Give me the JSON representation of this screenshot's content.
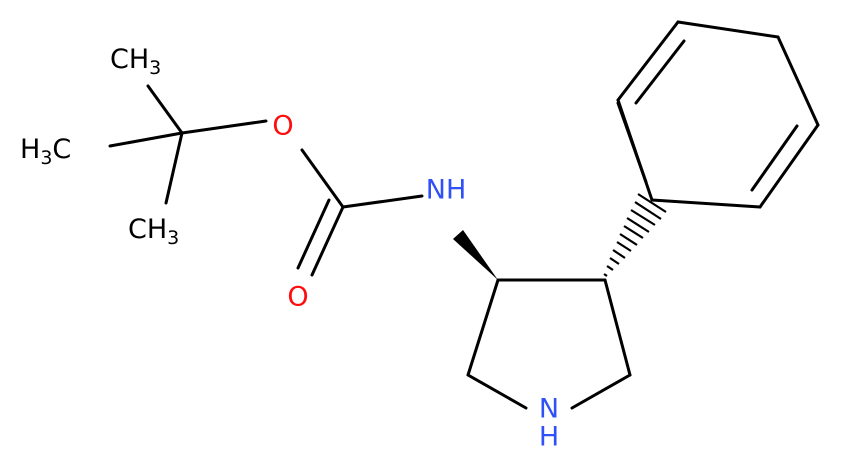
{
  "atoms": [
    {
      "text": "CH",
      "sub": "3"
    },
    {
      "text": "H",
      "sub": "3",
      "suffix": "C"
    },
    {
      "text": "CH",
      "sub": "3"
    },
    {
      "text": "O"
    },
    {
      "text": "O"
    },
    {
      "text": "NH"
    },
    {
      "text": "N"
    },
    {
      "text": "H"
    }
  ]
}
